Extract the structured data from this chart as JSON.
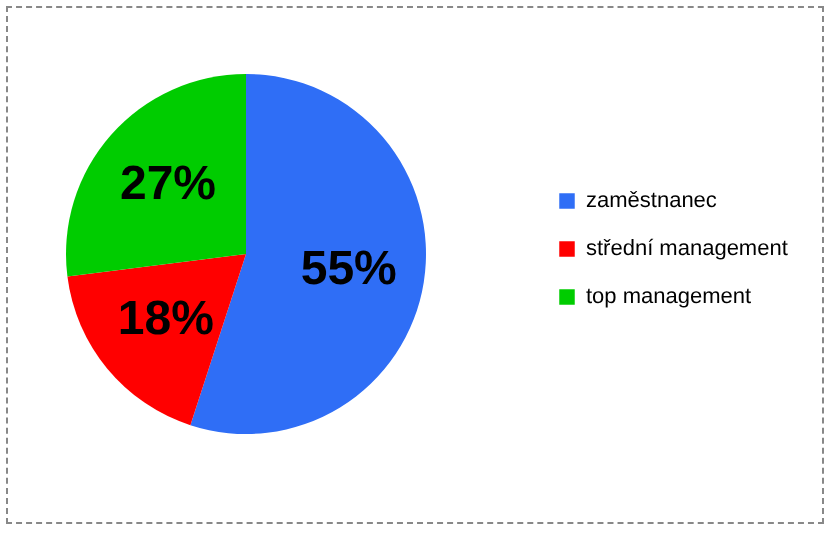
{
  "chart_data": {
    "type": "pie",
    "categories": [
      "zaměstnanec",
      "střední management",
      "top management"
    ],
    "values": [
      55,
      18,
      27
    ],
    "colors": [
      "#2f6ef6",
      "#ff0000",
      "#00cc00"
    ],
    "value_labels": [
      "55%",
      "18%",
      "27%"
    ],
    "legend": "right"
  }
}
